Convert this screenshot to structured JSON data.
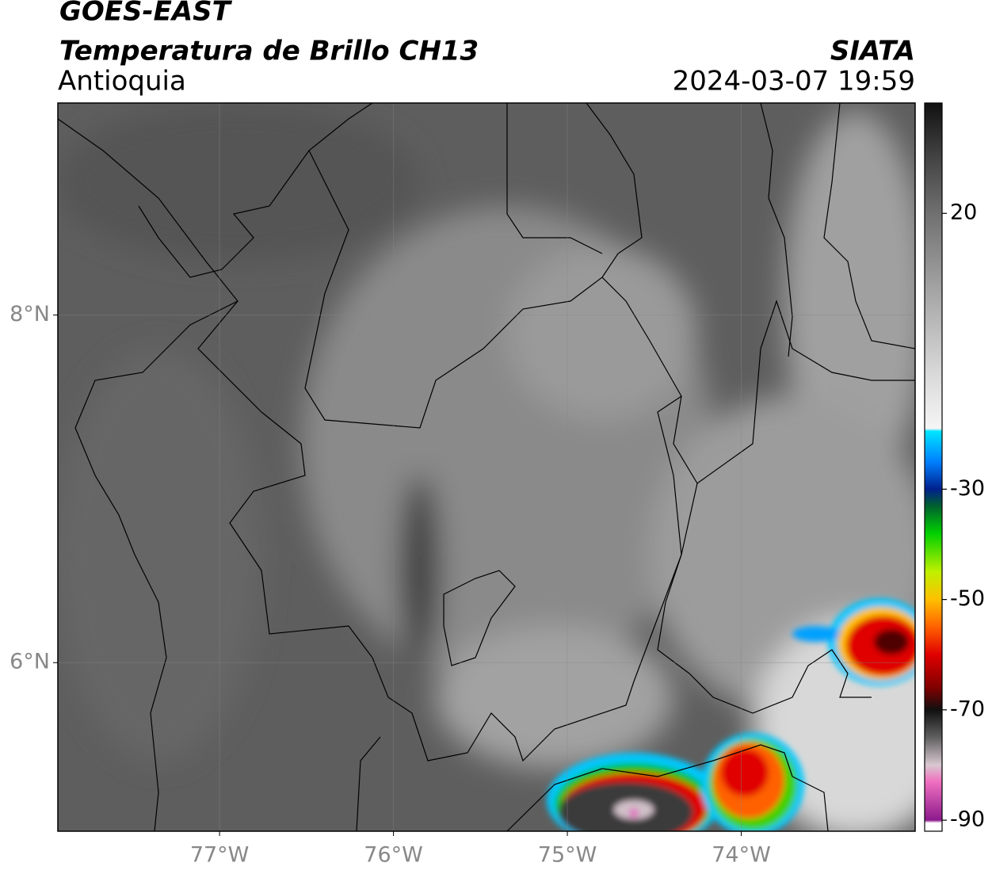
{
  "header": {
    "title": "GOES-EAST",
    "subtitle": "Temperatura de Brillo CH13",
    "region": "Antioquia",
    "source": "SIATA",
    "timestamp": "2024-03-07 19:59"
  },
  "map": {
    "xlim": [
      -77.93,
      -73
    ],
    "ylim": [
      5.03,
      9.22
    ],
    "xticks": [
      {
        "value": -77,
        "label": "77°W"
      },
      {
        "value": -76,
        "label": "76°W"
      },
      {
        "value": -75,
        "label": "75°W"
      },
      {
        "value": -74,
        "label": "74°W"
      }
    ],
    "yticks": [
      {
        "value": 8,
        "label": "8°N"
      },
      {
        "value": 6,
        "label": "6°N"
      }
    ],
    "grid": true
  },
  "colorbar": {
    "clim": [
      -92,
      40
    ],
    "ticks": [
      20,
      -30,
      -50,
      -70,
      -90
    ],
    "colormap": [
      [
        40,
        "#111111"
      ],
      [
        30,
        "#444444"
      ],
      [
        20,
        "#707070"
      ],
      [
        5,
        "#a8a8a8"
      ],
      [
        -10,
        "#dcdcdc"
      ],
      [
        -19,
        "#f5f5f5"
      ],
      [
        -19.5,
        "#00e5ff"
      ],
      [
        -25,
        "#0080ff"
      ],
      [
        -30,
        "#00208c"
      ],
      [
        -33,
        "#006030"
      ],
      [
        -38,
        "#00d000"
      ],
      [
        -45,
        "#c0f000"
      ],
      [
        -50,
        "#ffc000"
      ],
      [
        -55,
        "#ff6000"
      ],
      [
        -60,
        "#e00000"
      ],
      [
        -66,
        "#800000"
      ],
      [
        -70,
        "#101010"
      ],
      [
        -75,
        "#606060"
      ],
      [
        -80,
        "#d8c8d0"
      ],
      [
        -83,
        "#f070c0"
      ],
      [
        -90,
        "#8c1a8c"
      ],
      [
        -90.5,
        "#ffffff"
      ],
      [
        -92,
        "#ffffff"
      ]
    ]
  }
}
